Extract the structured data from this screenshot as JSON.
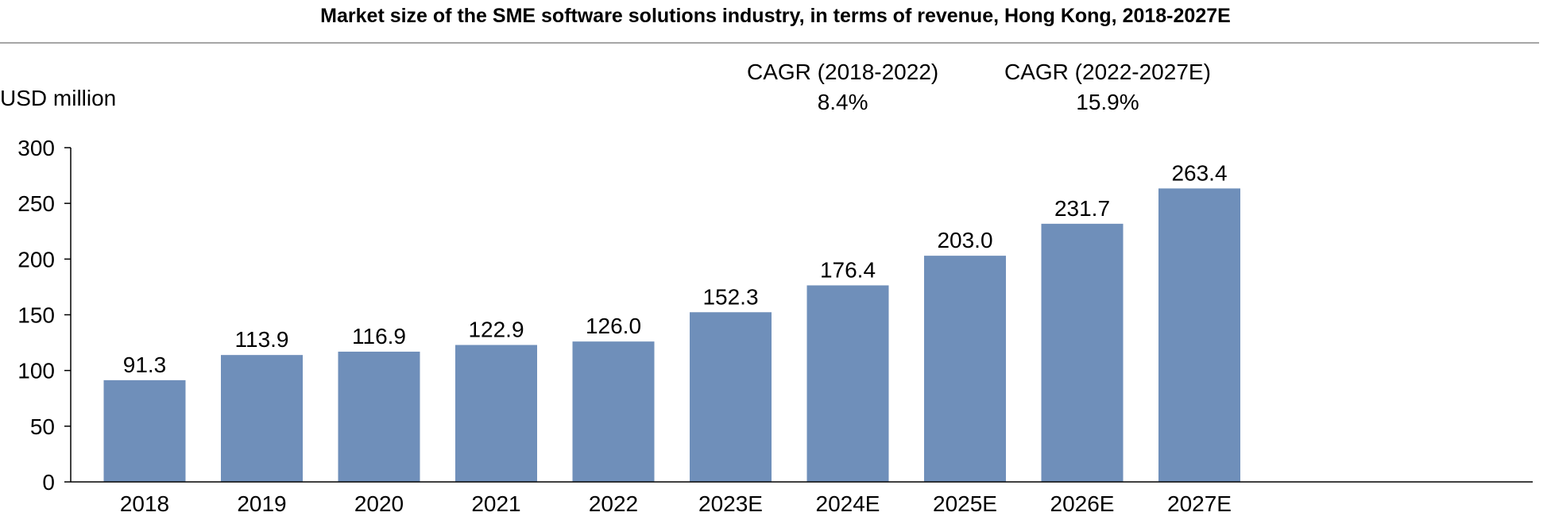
{
  "chart_data": {
    "type": "bar",
    "title": "Market size of the SME software solutions industry, in terms of revenue, Hong Kong, 2018-2027E",
    "xlabel": "",
    "ylabel": "USD million",
    "ylim": [
      0,
      300
    ],
    "yticks": [
      0,
      50,
      100,
      150,
      200,
      250,
      300
    ],
    "grid": false,
    "legend": "none",
    "categories": [
      "2018",
      "2019",
      "2020",
      "2021",
      "2022",
      "2023E",
      "2024E",
      "2025E",
      "2026E",
      "2027E"
    ],
    "values": [
      91.3,
      113.9,
      116.9,
      122.9,
      126.0,
      152.3,
      176.4,
      203.0,
      231.7,
      263.4
    ],
    "value_labels": [
      "91.3",
      "113.9",
      "116.9",
      "122.9",
      "126.0",
      "152.3",
      "176.4",
      "203.0",
      "231.7",
      "263.4"
    ],
    "bar_color": "#6f8fba",
    "annotations": [
      {
        "label": "CAGR (2018-2022)",
        "value": "8.4%"
      },
      {
        "label": "CAGR (2022-2027E)",
        "value": "15.9%"
      }
    ]
  }
}
